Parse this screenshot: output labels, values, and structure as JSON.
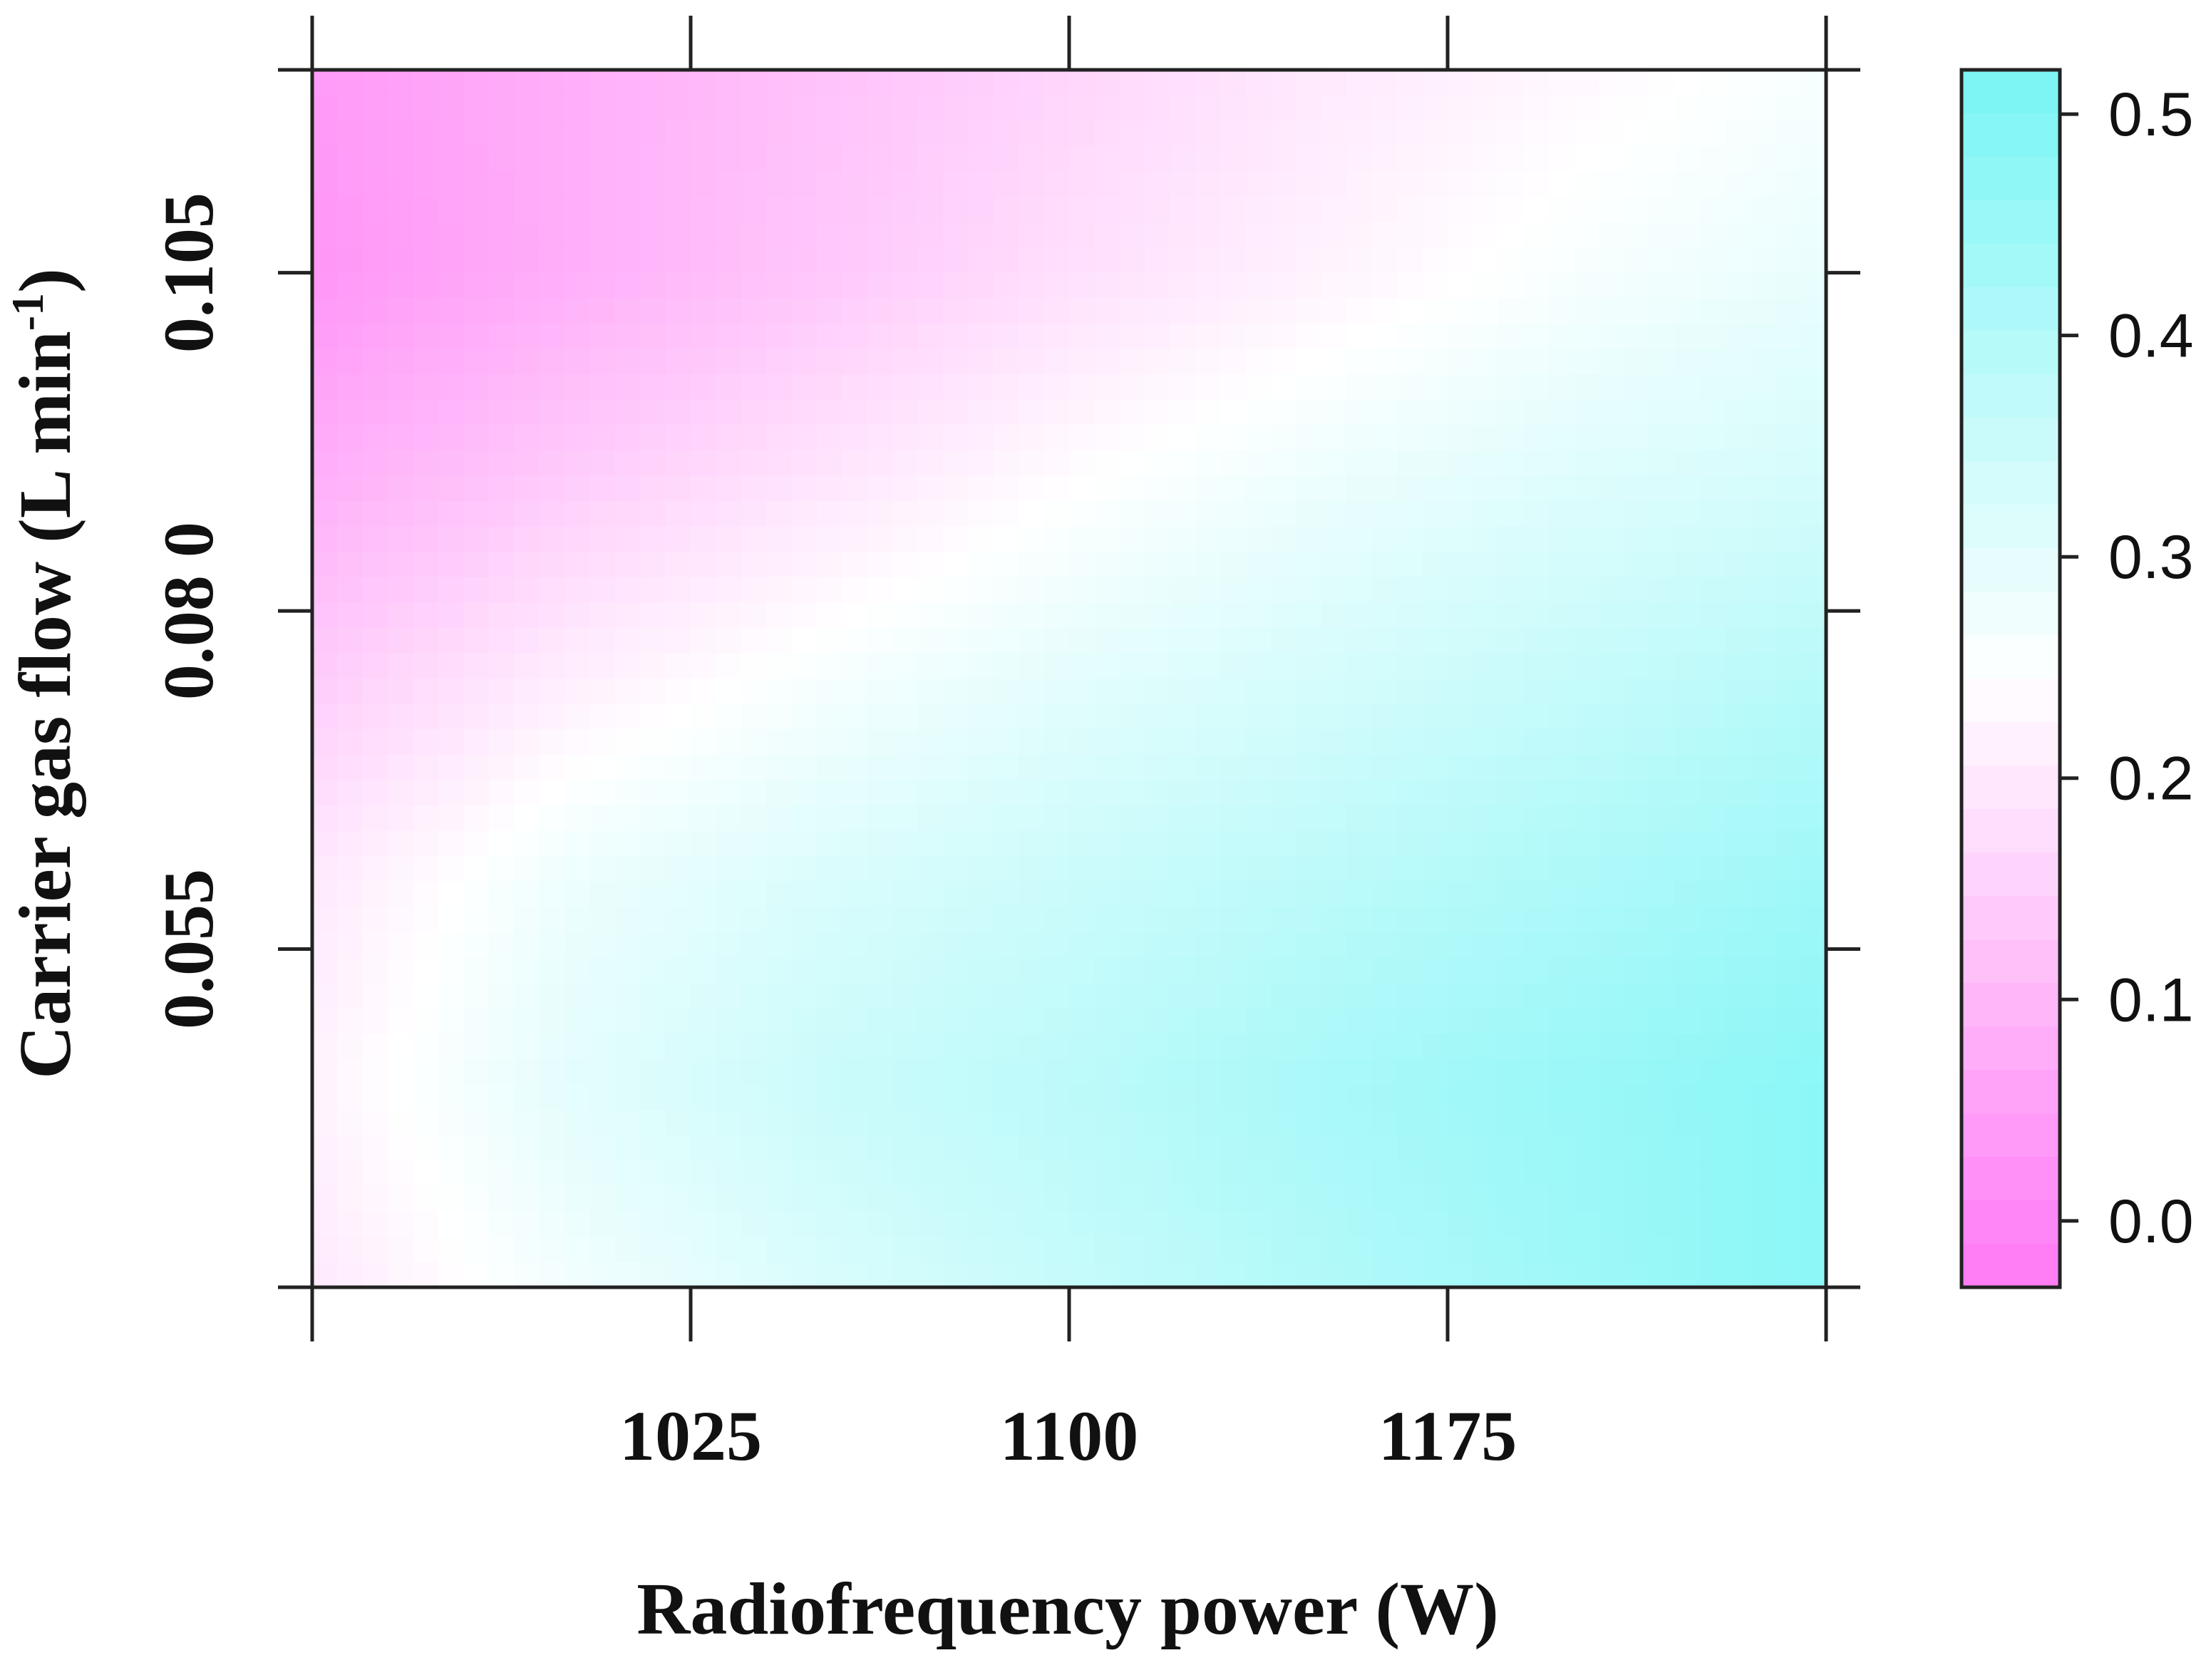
{
  "chart_data": {
    "type": "heatmap",
    "title": "",
    "xlabel": "Radiofrequency power (W)",
    "ylabel_main": "Carrier gas flow (L min",
    "ylabel_sup": "-1",
    "ylabel_close": ")",
    "xlim": [
      950,
      1250
    ],
    "ylim": [
      0.03,
      0.12
    ],
    "x_ticks": [
      {
        "value": 950,
        "label": ""
      },
      {
        "value": 1025,
        "label": "1025"
      },
      {
        "value": 1100,
        "label": "1100"
      },
      {
        "value": 1175,
        "label": "1175"
      },
      {
        "value": 1250,
        "label": ""
      }
    ],
    "y_ticks": [
      {
        "value": 0.03,
        "label": ""
      },
      {
        "value": 0.055,
        "label": "0.055"
      },
      {
        "value": 0.08,
        "label": "0.08 0"
      },
      {
        "value": 0.105,
        "label": "0.105"
      },
      {
        "value": 0.12,
        "label": ""
      }
    ],
    "colorbar": {
      "range": [
        -0.03,
        0.52
      ],
      "ticks": [
        {
          "value": 0.0,
          "label": "0.0"
        },
        {
          "value": 0.1,
          "label": "0.1"
        },
        {
          "value": 0.2,
          "label": "0.2"
        },
        {
          "value": 0.3,
          "label": "0.3"
        },
        {
          "value": 0.4,
          "label": "0.4"
        },
        {
          "value": 0.5,
          "label": "0.5"
        }
      ],
      "low_color": "#ff78f5",
      "mid_color": "#ffffff",
      "high_color": "#78f5f5",
      "mid_value": 0.245
    },
    "surface_samples": {
      "x": [
        950,
        1000,
        1050,
        1100,
        1150,
        1200,
        1250
      ],
      "y": [
        0.03,
        0.045,
        0.06,
        0.075,
        0.09,
        0.105,
        0.12
      ],
      "z": [
        [
          0.2,
          0.27,
          0.32,
          0.36,
          0.4,
          0.44,
          0.48
        ],
        [
          0.22,
          0.3,
          0.35,
          0.38,
          0.42,
          0.45,
          0.48
        ],
        [
          0.2,
          0.28,
          0.32,
          0.35,
          0.38,
          0.41,
          0.44
        ],
        [
          0.14,
          0.21,
          0.26,
          0.3,
          0.33,
          0.36,
          0.39
        ],
        [
          0.08,
          0.14,
          0.19,
          0.24,
          0.28,
          0.31,
          0.33
        ],
        [
          0.03,
          0.08,
          0.13,
          0.18,
          0.22,
          0.26,
          0.29
        ],
        [
          0.04,
          0.08,
          0.12,
          0.16,
          0.2,
          0.23,
          0.26
        ]
      ]
    }
  }
}
